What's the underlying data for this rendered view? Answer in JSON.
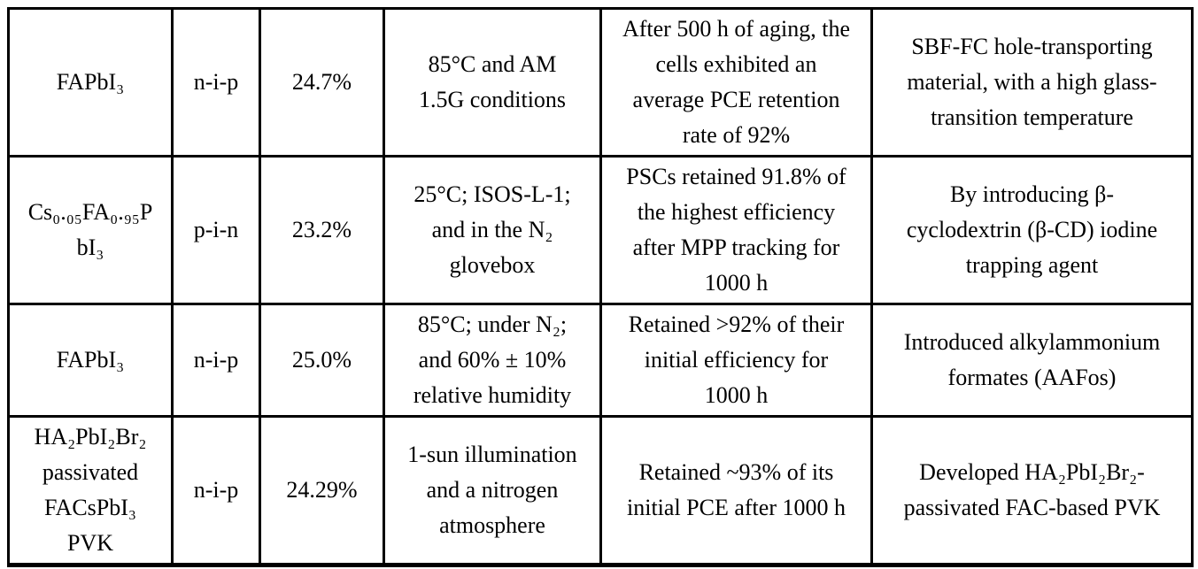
{
  "table": {
    "description": "Perovskite solar cell stability summary table",
    "columns": [
      "material",
      "device_structure",
      "pce",
      "test_conditions",
      "stability_result",
      "strategy"
    ],
    "text_color": "#000000",
    "border_color": "#000000",
    "background_color": "#ffffff",
    "rows": [
      {
        "material": "FAPbI₃",
        "structure": "n-i-p",
        "pce": "24.7%",
        "conditions": "85°C and AM\n1.5G conditions",
        "stability": "After 500 h of aging, the\ncells exhibited an\naverage PCE retention\nrate of 92%",
        "strategy": "SBF-FC hole-transporting\nmaterial, with a high glass-\ntransition temperature"
      },
      {
        "material": "Cs₀.₀₅FA₀.₉₅P\nbI₃",
        "structure": "p-i-n",
        "pce": "23.2%",
        "conditions": "25°C; ISOS-L-1;\nand in the N₂\nglovebox",
        "stability": "PSCs retained 91.8% of\nthe highest efficiency\nafter MPP tracking for\n1000 h",
        "strategy": "By introducing β-\ncyclodextrin (β-CD) iodine\ntrapping agent"
      },
      {
        "material": "FAPbI₃",
        "structure": "n-i-p",
        "pce": "25.0%",
        "conditions": "85°C; under N₂;\nand 60% ± 10%\nrelative humidity",
        "stability": "Retained >92% of their\ninitial efficiency for\n1000 h",
        "strategy": "Introduced alkylammonium\nformates (AAFos)"
      },
      {
        "material": "HA₂PbI₂Br₂\npassivated\nFACsPbI₃\nPVK",
        "structure": "n-i-p",
        "pce": "24.29%",
        "conditions": "1-sun illumination\nand a nitrogen\natmosphere",
        "stability": "Retained ~93% of its\ninitial PCE after 1000 h",
        "strategy": "Developed HA₂PbI₂Br₂-\npassivated FAC-based PVK"
      }
    ]
  }
}
